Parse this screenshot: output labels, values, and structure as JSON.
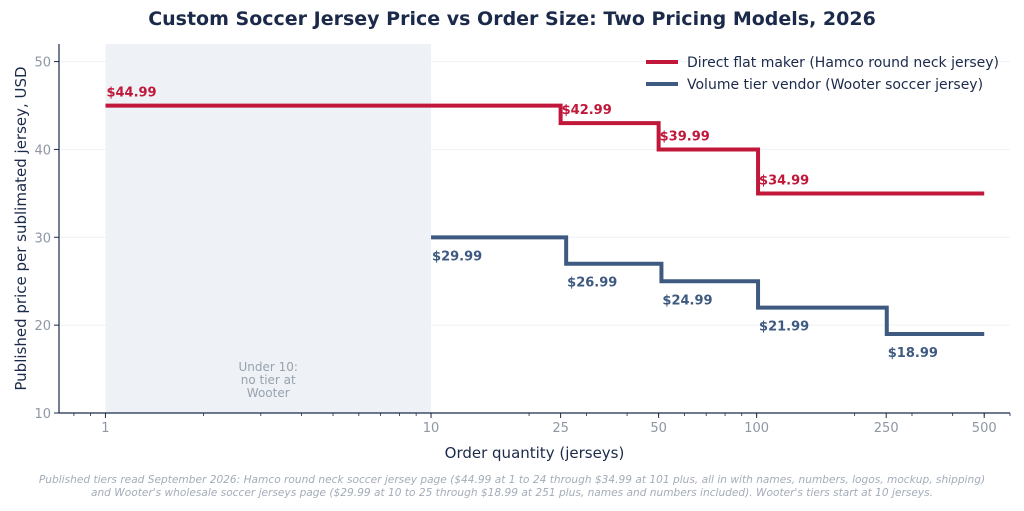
{
  "chart_data": {
    "type": "line",
    "step": true,
    "title": "Custom Soccer Jersey Price vs Order Size: Two Pricing Models, 2026",
    "xlabel": "Order quantity (jerseys)",
    "ylabel": "Published price per sublimated jersey, USD",
    "x_scale": "log",
    "xlim": [
      0.72,
      600
    ],
    "ylim": [
      10,
      52
    ],
    "x_ticks": [
      1,
      10,
      25,
      50,
      100,
      250,
      500
    ],
    "x_tick_labels": [
      "1",
      "10",
      "25",
      "50",
      "100",
      "250",
      "500"
    ],
    "y_ticks": [
      10,
      20,
      30,
      40,
      50
    ],
    "y_tick_labels": [
      "10",
      "20",
      "30",
      "40",
      "50"
    ],
    "grid": "horizontal",
    "legend_position": "top-right",
    "series": [
      {
        "name": "Direct flat maker (Hamco round neck jersey)",
        "color": "#c0173a",
        "x": [
          1,
          25,
          50,
          101,
          500
        ],
        "y": [
          44.99,
          42.99,
          39.99,
          34.99,
          34.99
        ],
        "labels": [
          "$44.99",
          "$42.99",
          "$39.99",
          "$34.99"
        ]
      },
      {
        "name": "Volume tier vendor (Wooter soccer jersey)",
        "color": "#3e5a80",
        "x": [
          10,
          26,
          51,
          101,
          251,
          500
        ],
        "y": [
          29.99,
          26.99,
          24.99,
          21.99,
          18.99,
          18.99
        ],
        "labels": [
          "$29.99",
          "$26.99",
          "$24.99",
          "$21.99",
          "$18.99"
        ]
      }
    ],
    "shaded_region": {
      "x_range": [
        1,
        10
      ],
      "color": "#eef2f6",
      "text_lines": [
        "Under 10:",
        "no tier at",
        "Wooter"
      ]
    }
  },
  "footnote": {
    "line1": "Published tiers read September 2026: Hamco round neck soccer jersey page ($44.99 at 1 to 24 through $34.99 at 101 plus, all in with names, numbers, logos, mockup, shipping)",
    "line2": "and Wooter's wholesale soccer jerseys page ($29.99 at 10 to 25 through $18.99 at 251 plus, names and numbers included). Wooter's tiers start at 10 jerseys."
  }
}
